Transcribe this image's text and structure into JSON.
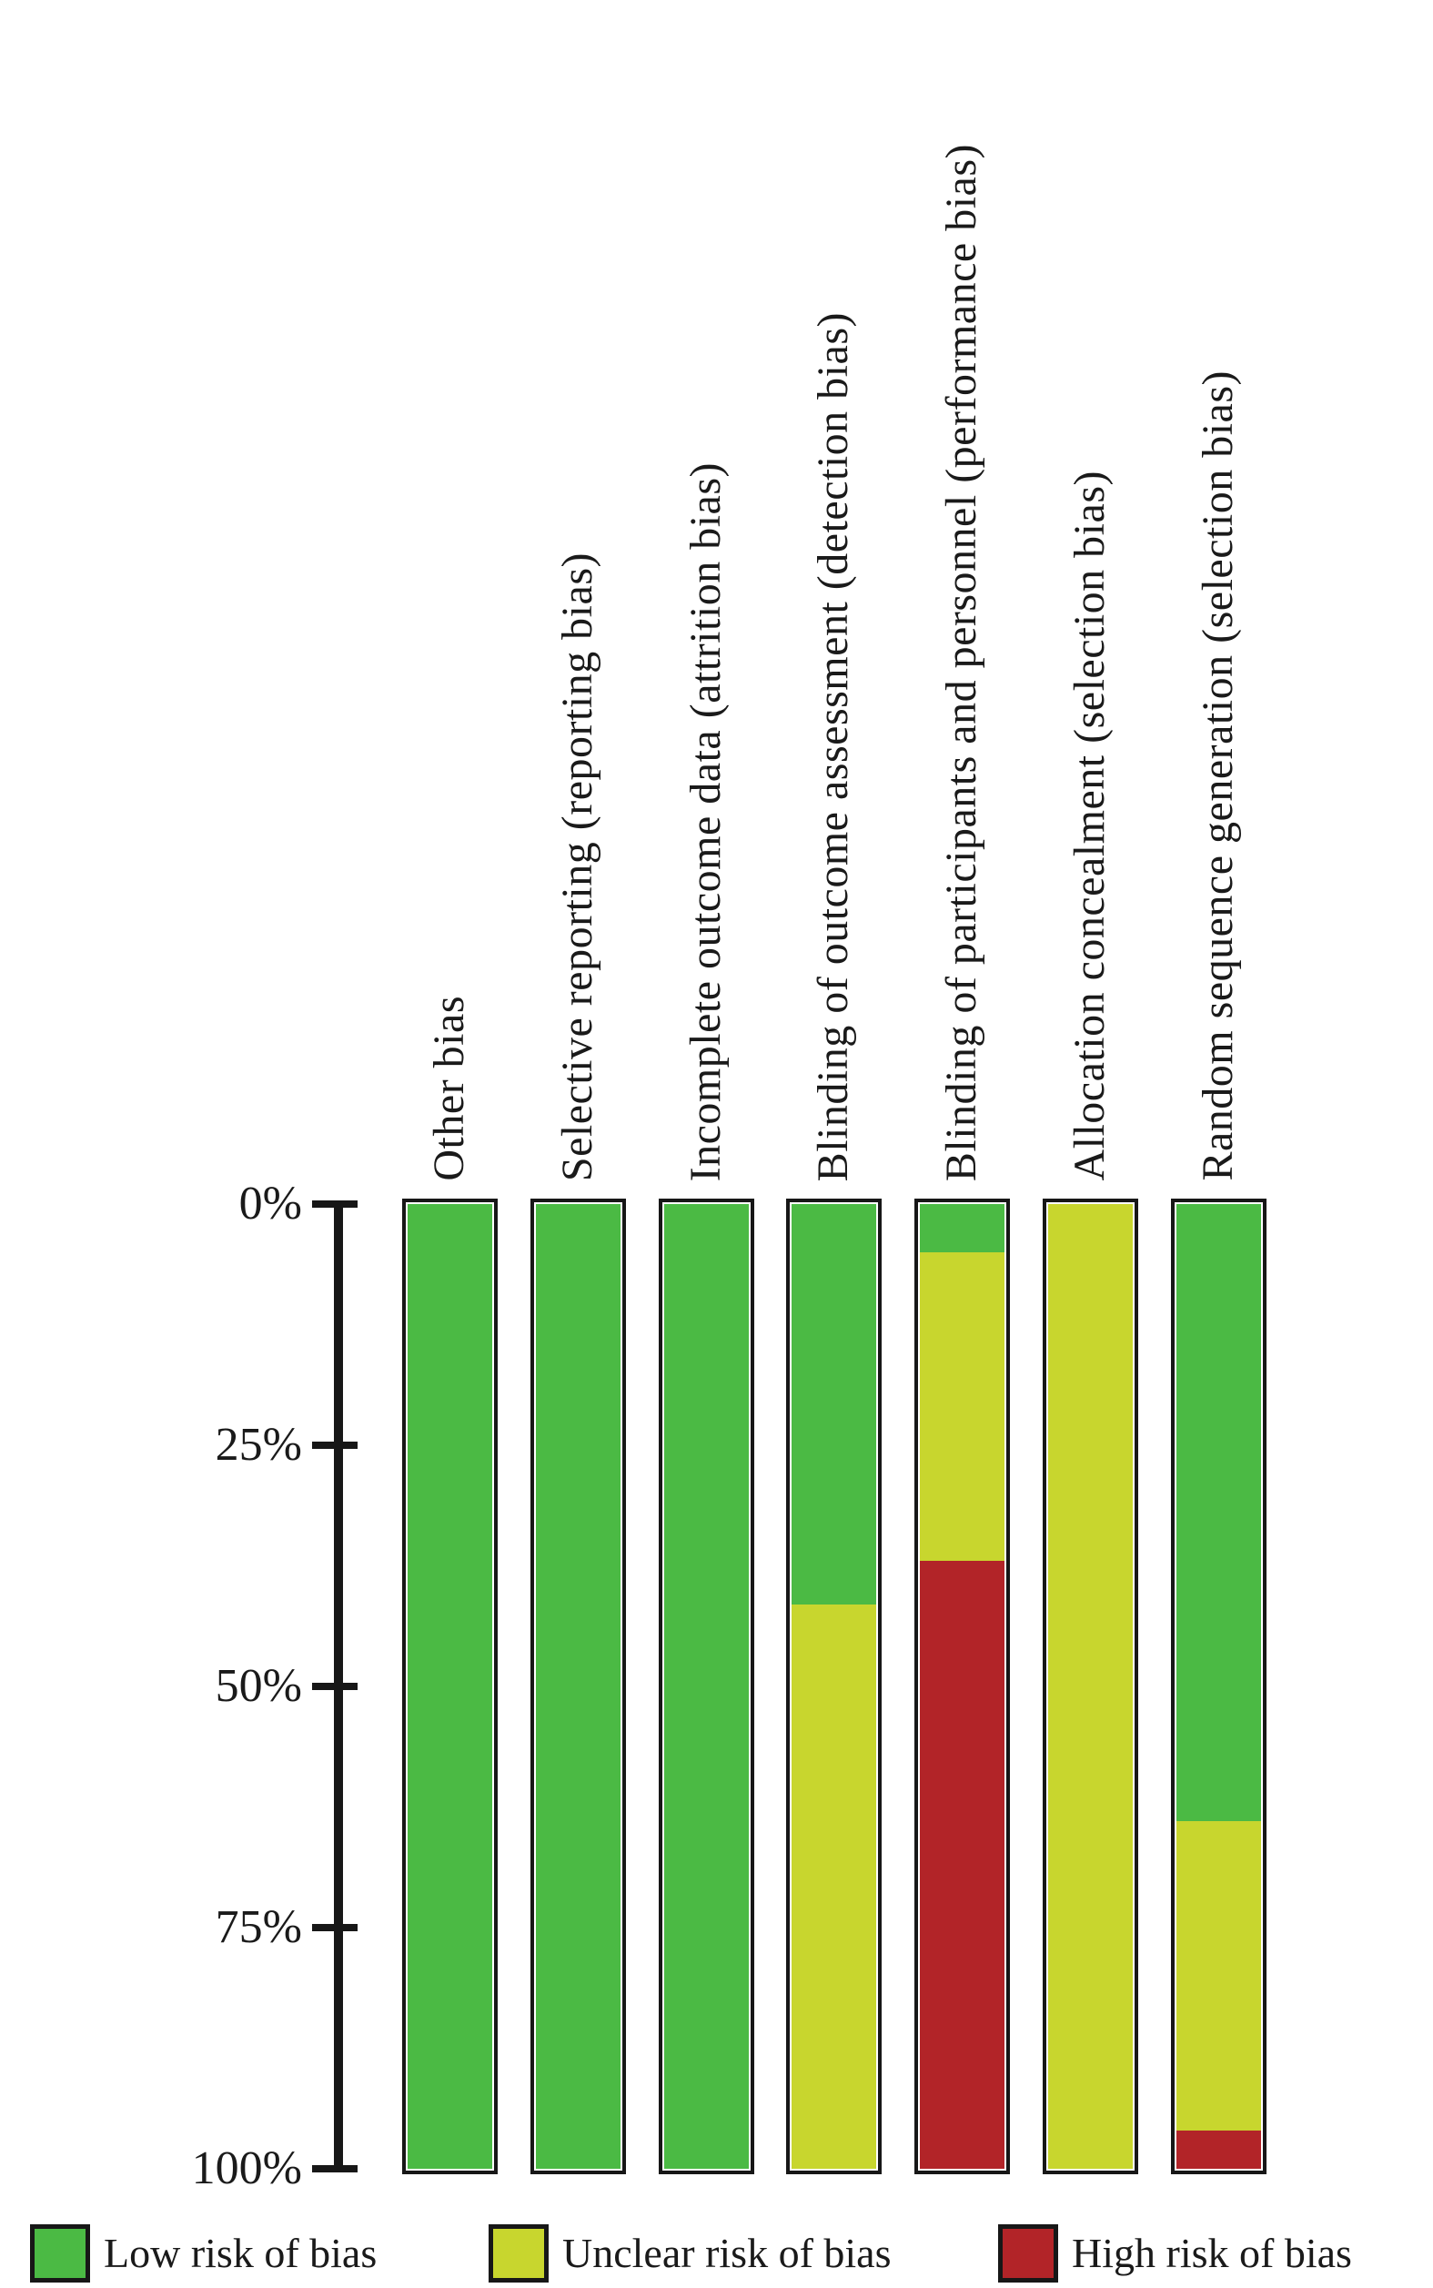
{
  "chart_data": {
    "type": "bar",
    "variant": "stacked-percentage-columns",
    "title": "",
    "xlabel": "",
    "ylabel": "",
    "grid": false,
    "y_axis": {
      "inverted": true,
      "range": [
        0,
        100
      ],
      "tick_values": [
        0,
        25,
        50,
        75,
        100
      ],
      "tick_labels": [
        "0%",
        "25%",
        "50%",
        "75%",
        "100%"
      ]
    },
    "categories": [
      "Other bias",
      "Selective reporting (reporting bias)",
      "Incomplete outcome data (attrition bias)",
      "Blinding of outcome assessment (detection bias)",
      "Blinding of participants and personnel (performance bias)",
      "Allocation concealment (selection bias)",
      "Random sequence generation (selection bias)"
    ],
    "series": [
      {
        "name": "Low risk of bias",
        "color": "#4bba44",
        "values": [
          100,
          100,
          100,
          41.5,
          5,
          0,
          64
        ]
      },
      {
        "name": "Unclear risk of bias",
        "color": "#c8d62e",
        "values": [
          0,
          0,
          0,
          58.5,
          32,
          100,
          32
        ]
      },
      {
        "name": "High risk of bias",
        "color": "#b22428",
        "values": [
          0,
          0,
          0,
          0,
          63,
          0,
          4
        ]
      }
    ],
    "legend_position": "bottom"
  },
  "legend": {
    "items": [
      {
        "label": "Low risk of bias",
        "color": "#4bba44"
      },
      {
        "label": "Unclear risk of bias",
        "color": "#c8d62e"
      },
      {
        "label": "High risk of bias",
        "color": "#b22428"
      }
    ]
  },
  "colors": {
    "axis": "#171717",
    "text": "#1a1a1a",
    "background": "#ffffff"
  }
}
